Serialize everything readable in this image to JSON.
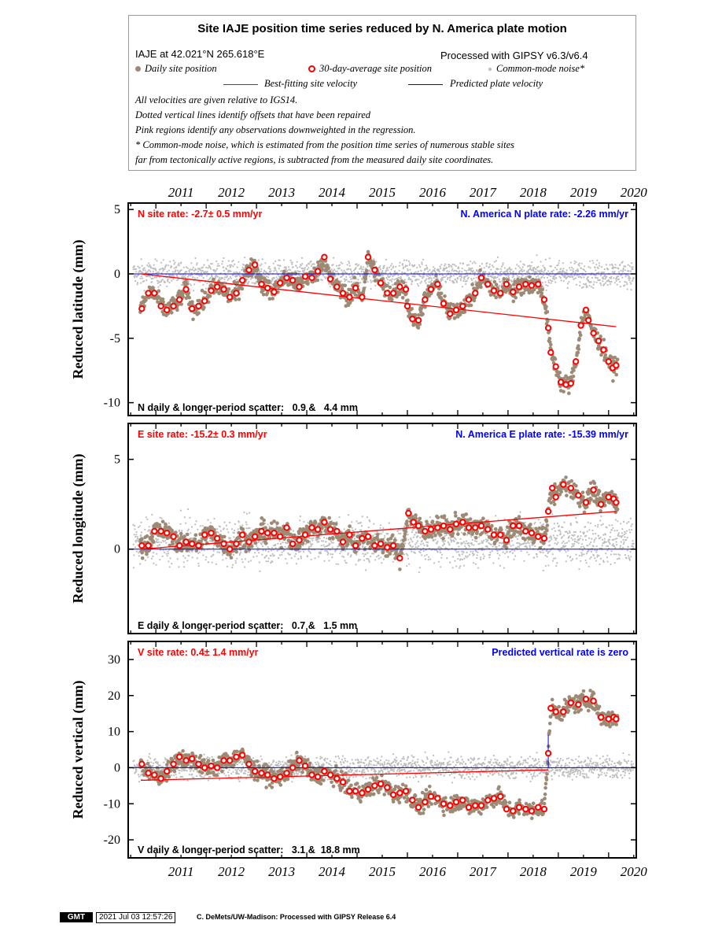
{
  "legend": {
    "title": "Site IAJE position time series reduced by N. America plate motion",
    "site_location": "IAJE at 42.021°N 265.618°E",
    "processed_with": "Processed with GIPSY v6.3/v6.4",
    "daily_label": "Daily site position",
    "avg_label": "30-day-average site position",
    "cm_label": "Common-mode noise*",
    "best_fit_label": "Best-fitting site velocity",
    "predicted_label": "Predicted plate velocity",
    "notes": [
      "All velocities are given relative to IGS14.",
      "Dotted vertical lines identify offsets that have been repaired",
      "Pink regions identify any observations downweighted in the regression.",
      "* Common-mode noise, which is estimated from the position time series of numerous stable sites",
      "far from tectonically active regions, is subtracted from the measured daily site coordinates."
    ]
  },
  "colors": {
    "daily": "#9c8a74",
    "common_mode": "#bdbdbd",
    "fit": "#ff0000",
    "predicted": "#0000ff",
    "avg_fill": "#ffffff",
    "avg_stroke": "#ff0000"
  },
  "chart_data": [
    {
      "type": "scatter",
      "component": "N",
      "ylabel": "Reduced latitude (mm)",
      "ylim": [
        -11,
        5.5
      ],
      "yticks": [
        5,
        0,
        -5,
        -10
      ],
      "xlim": [
        2010.45,
        2020.55
      ],
      "xticks": [
        2011,
        2012,
        2013,
        2014,
        2015,
        2016,
        2017,
        2018,
        2019,
        2020
      ],
      "site_rate_text": "N site rate:  -2.7± 0.5 mm/yr",
      "plate_rate_text": "N. America N plate rate: -2.26 mm/yr",
      "scatter_text": "N daily & longer-period scatter:   0.9 &   4.4 mm",
      "best_fit_line": {
        "x": [
          2010.7,
          2020.15
        ],
        "y": [
          0.0,
          -4.1
        ]
      },
      "predicted_line": {
        "y": 0
      },
      "series": [
        {
          "name": "30-day-average site position",
          "x": [
            2010.72,
            2010.85,
            2010.97,
            2011.1,
            2011.22,
            2011.35,
            2011.47,
            2011.6,
            2011.72,
            2011.85,
            2011.97,
            2012.1,
            2012.22,
            2012.35,
            2012.47,
            2012.6,
            2012.72,
            2012.85,
            2012.97,
            2013.1,
            2013.22,
            2013.35,
            2013.47,
            2013.6,
            2013.72,
            2013.85,
            2013.97,
            2014.1,
            2014.22,
            2014.35,
            2014.47,
            2014.6,
            2014.72,
            2014.85,
            2014.97,
            2015.1,
            2015.22,
            2015.35,
            2015.47,
            2015.6,
            2015.72,
            2015.85,
            2015.97,
            2016.0,
            2016.1,
            2016.22,
            2016.35,
            2016.47,
            2016.6,
            2016.72,
            2016.85,
            2016.97,
            2017.1,
            2017.22,
            2017.35,
            2017.47,
            2017.6,
            2017.72,
            2017.85,
            2017.97,
            2018.1,
            2018.22,
            2018.35,
            2018.47,
            2018.6,
            2018.72,
            2018.8,
            2018.85,
            2018.95,
            2019.05,
            2019.15,
            2019.25,
            2019.35,
            2019.45,
            2019.55,
            2019.6,
            2019.7,
            2019.8,
            2019.9,
            2020.0,
            2020.08,
            2020.15
          ],
          "y": [
            -2.7,
            -1.5,
            -1.5,
            -2.5,
            -2.8,
            -2.5,
            -2.0,
            -1.2,
            -2.7,
            -2.5,
            -2.1,
            -1.3,
            -1.0,
            -1.2,
            -1.8,
            -1.5,
            -0.5,
            0.3,
            0.7,
            -0.8,
            -1.1,
            -1.4,
            -0.7,
            -0.3,
            -0.5,
            -1.0,
            -0.2,
            -0.3,
            0.2,
            1.3,
            -0.4,
            -1.0,
            -1.5,
            -1.8,
            -1.1,
            -1.8,
            1.3,
            0.3,
            -0.7,
            -1.5,
            -1.5,
            -1.0,
            -1.2,
            -2.5,
            -3.5,
            -3.6,
            -2.0,
            -1.2,
            -0.8,
            -2.3,
            -3.1,
            -2.8,
            -2.5,
            -2.0,
            -1.5,
            -0.3,
            -0.8,
            -1.3,
            -1.5,
            -0.8,
            -1.4,
            -1.0,
            -0.8,
            -0.9,
            -0.8,
            -2.0,
            -4.2,
            -6.1,
            -7.2,
            -8.4,
            -8.6,
            -8.5,
            -6.8,
            -4.0,
            -2.8,
            -3.6,
            -4.6,
            -5.2,
            -5.9,
            -6.8,
            -7.3,
            -7.1
          ]
        }
      ]
    },
    {
      "type": "scatter",
      "component": "E",
      "ylabel": "Reduced longitude (mm)",
      "ylim": [
        -4.7,
        7
      ],
      "yticks": [
        5,
        0
      ],
      "xlim": [
        2010.45,
        2020.55
      ],
      "xticks": [
        2011,
        2012,
        2013,
        2014,
        2015,
        2016,
        2017,
        2018,
        2019,
        2020
      ],
      "site_rate_text": "E site rate:  -15.2± 0.3 mm/yr",
      "plate_rate_text": "N. America E plate rate: -15.39 mm/yr",
      "scatter_text": "E daily & longer-period scatter:   0.7 &   1.5 mm",
      "best_fit_line": {
        "x": [
          2010.7,
          2020.15
        ],
        "y": [
          0.0,
          2.1
        ]
      },
      "predicted_line": {
        "y": 0
      },
      "series": [
        {
          "name": "30-day-average site position",
          "x": [
            2010.72,
            2010.85,
            2010.97,
            2011.1,
            2011.22,
            2011.35,
            2011.47,
            2011.6,
            2011.72,
            2011.85,
            2011.97,
            2012.1,
            2012.22,
            2012.35,
            2012.47,
            2012.6,
            2012.72,
            2012.85,
            2012.97,
            2013.1,
            2013.22,
            2013.35,
            2013.47,
            2013.6,
            2013.72,
            2013.85,
            2013.97,
            2014.1,
            2014.22,
            2014.35,
            2014.47,
            2014.6,
            2014.72,
            2014.85,
            2014.97,
            2015.1,
            2015.22,
            2015.35,
            2015.47,
            2015.6,
            2015.72,
            2015.85,
            2016.02,
            2016.12,
            2016.22,
            2016.35,
            2016.47,
            2016.6,
            2016.72,
            2016.85,
            2016.97,
            2017.1,
            2017.22,
            2017.35,
            2017.47,
            2017.6,
            2017.72,
            2017.85,
            2017.97,
            2018.1,
            2018.22,
            2018.35,
            2018.47,
            2018.6,
            2018.72,
            2018.8,
            2018.88,
            2018.95,
            2019.1,
            2019.25,
            2019.4,
            2019.55,
            2019.7,
            2019.85,
            2020.0,
            2020.1,
            2020.15
          ],
          "y": [
            0.2,
            0.2,
            1.0,
            1.0,
            0.9,
            0.7,
            0.2,
            0.4,
            0.3,
            0.2,
            0.8,
            0.9,
            0.6,
            0.3,
            0.0,
            0.3,
            0.8,
            0.4,
            0.7,
            1.0,
            0.9,
            0.9,
            0.7,
            1.2,
            0.3,
            0.5,
            0.8,
            1.2,
            1.1,
            1.5,
            1.1,
            1.0,
            0.4,
            0.8,
            0.2,
            0.6,
            0.7,
            0.2,
            0.3,
            0.1,
            0.2,
            -0.5,
            2.0,
            1.5,
            1.3,
            1.0,
            1.1,
            1.2,
            1.3,
            1.1,
            1.4,
            1.5,
            1.2,
            1.2,
            1.3,
            1.1,
            0.8,
            0.8,
            0.5,
            1.3,
            1.3,
            1.0,
            0.9,
            0.7,
            0.6,
            2.1,
            3.4,
            2.9,
            3.6,
            3.4,
            3.0,
            2.6,
            3.3,
            2.5,
            2.9,
            2.8,
            2.6
          ]
        }
      ]
    },
    {
      "type": "scatter",
      "component": "V",
      "ylabel": "Reduced vertical (mm)",
      "ylim": [
        -25,
        35
      ],
      "yticks": [
        30,
        20,
        10,
        0,
        -10,
        -20
      ],
      "xlim": [
        2010.45,
        2020.55
      ],
      "xticks": [
        2011,
        2012,
        2013,
        2014,
        2015,
        2016,
        2017,
        2018,
        2019,
        2020
      ],
      "site_rate_text": "V site rate:   0.4± 1.4 mm/yr",
      "plate_rate_text": "Predicted vertical rate is zero",
      "scatter_text": "V daily & longer-period scatter:   3.1 &  18.8 mm",
      "best_fit_line": {
        "x": [
          2010.7,
          2018.8
        ],
        "y": [
          -3.5,
          -0.6
        ]
      },
      "predicted_line": {
        "y": 0
      },
      "series": [
        {
          "name": "30-day-average site position",
          "x": [
            2010.72,
            2010.85,
            2010.97,
            2011.1,
            2011.22,
            2011.35,
            2011.47,
            2011.6,
            2011.72,
            2011.85,
            2011.97,
            2012.1,
            2012.22,
            2012.35,
            2012.47,
            2012.6,
            2012.72,
            2012.85,
            2012.97,
            2013.1,
            2013.22,
            2013.35,
            2013.47,
            2013.6,
            2013.72,
            2013.85,
            2013.97,
            2014.1,
            2014.22,
            2014.35,
            2014.47,
            2014.6,
            2014.72,
            2014.85,
            2014.97,
            2015.1,
            2015.22,
            2015.35,
            2015.47,
            2015.6,
            2015.72,
            2015.85,
            2015.97,
            2016.1,
            2016.22,
            2016.35,
            2016.47,
            2016.6,
            2016.72,
            2016.85,
            2016.97,
            2017.1,
            2017.22,
            2017.35,
            2017.47,
            2017.6,
            2017.72,
            2017.85,
            2017.97,
            2018.1,
            2018.22,
            2018.35,
            2018.47,
            2018.6,
            2018.72,
            2018.8,
            2018.85,
            2018.95,
            2019.1,
            2019.25,
            2019.4,
            2019.55,
            2019.7,
            2019.85,
            2020.0,
            2020.1,
            2020.15
          ],
          "y": [
            1.0,
            -1.5,
            -2.0,
            -3.0,
            -1.0,
            1.0,
            3.0,
            2.0,
            2.5,
            1.0,
            0.0,
            0.5,
            0.0,
            2.0,
            2.0,
            3.0,
            3.5,
            1.0,
            -1.0,
            -1.5,
            -2.0,
            -3.0,
            -2.5,
            -1.5,
            0.0,
            2.0,
            0.5,
            -2.0,
            -2.5,
            -1.0,
            -2.0,
            -3.0,
            -4.0,
            -6.5,
            -6.5,
            -7.0,
            -6.0,
            -5.0,
            -4.5,
            -5.5,
            -7.5,
            -7.0,
            -6.5,
            -9.0,
            -11.0,
            -9.5,
            -8.0,
            -8.5,
            -10.0,
            -10.5,
            -9.5,
            -9.0,
            -11.0,
            -10.5,
            -10.5,
            -9.0,
            -8.5,
            -8.0,
            -11.5,
            -12.0,
            -11.0,
            -11.5,
            -12.0,
            -11.0,
            -11.5,
            4.0,
            16.5,
            15.5,
            15.5,
            18.0,
            17.5,
            19.0,
            18.5,
            14.0,
            13.5,
            14.0,
            13.5
          ]
        }
      ]
    }
  ],
  "footer": {
    "logo": "GMT",
    "timestamp": "2021 Jul 03 12:57:26",
    "credit": "C. DeMets/UW-Madison: Processed with GIPSY Release 6.4"
  }
}
